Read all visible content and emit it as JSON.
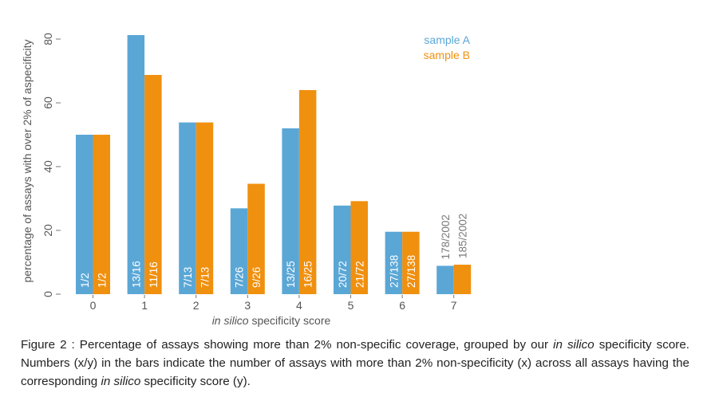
{
  "chart_data": {
    "type": "bar",
    "categories": [
      "0",
      "1",
      "2",
      "3",
      "4",
      "5",
      "6",
      "7"
    ],
    "series": [
      {
        "name": "sample A",
        "color": "#5aa7d6",
        "values": [
          50,
          81.25,
          53.85,
          26.92,
          52,
          27.78,
          19.57,
          8.89
        ],
        "labels": [
          "1/2",
          "13/16",
          "7/13",
          "7/26",
          "13/25",
          "20/72",
          "27/138",
          "178/2002"
        ]
      },
      {
        "name": "sample B",
        "color": "#f0900f",
        "values": [
          50,
          68.75,
          53.85,
          34.62,
          64,
          29.17,
          19.57,
          9.24
        ],
        "labels": [
          "1/2",
          "11/16",
          "7/13",
          "9/26",
          "16/25",
          "21/72",
          "27/138",
          "185/2002"
        ]
      }
    ],
    "xlabel": {
      "italic": "in silico",
      "rest": " specificity score"
    },
    "ylabel": "percentage of assays with over 2% of aspecificity",
    "yticks": [
      0,
      20,
      40,
      60,
      80
    ],
    "ylim": [
      0,
      81.25
    ],
    "legend_position": "top-right",
    "grid": false
  },
  "caption": {
    "part1": "Figure 2 : Percentage of assays showing more than 2% non-specific coverage, grouped by our ",
    "italic1": "in silico",
    "part2": " specificity score. Numbers (x/y) in the bars indicate the number of assays with more than 2% non-specificity (x) across all assays having the corresponding ",
    "italic2": "in silico",
    "part3": " specificity score (y)."
  }
}
